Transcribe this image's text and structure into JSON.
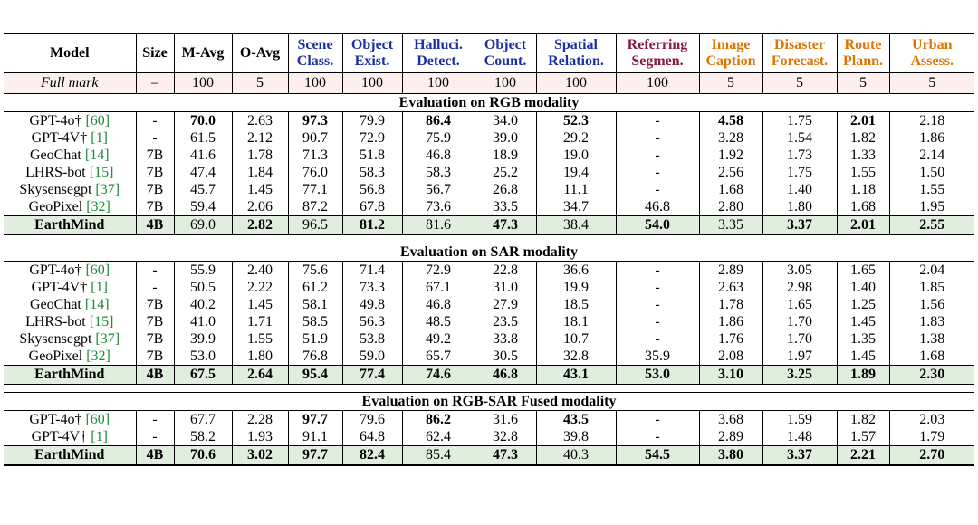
{
  "columns": [
    {
      "lines": [
        "Model"
      ],
      "color": "#000000"
    },
    {
      "lines": [
        "Size"
      ],
      "color": "#000000"
    },
    {
      "lines": [
        "M-Avg"
      ],
      "color": "#000000"
    },
    {
      "lines": [
        "O-Avg"
      ],
      "color": "#000000"
    },
    {
      "lines": [
        "Scene",
        "Class."
      ],
      "color": "#1a2fa8"
    },
    {
      "lines": [
        "Object",
        "Exist."
      ],
      "color": "#1a2fa8"
    },
    {
      "lines": [
        "Halluci.",
        "Detect."
      ],
      "color": "#1a2fa8"
    },
    {
      "lines": [
        "Object",
        "Count."
      ],
      "color": "#1a2fa8"
    },
    {
      "lines": [
        "Spatial",
        "Relation."
      ],
      "color": "#1a2fa8"
    },
    {
      "lines": [
        "Referring",
        "Segmen."
      ],
      "color": "#8b1a3a"
    },
    {
      "lines": [
        "Image",
        "Caption"
      ],
      "color": "#e07400"
    },
    {
      "lines": [
        "Disaster",
        "Forecast."
      ],
      "color": "#e07400"
    },
    {
      "lines": [
        "Route",
        "Plann."
      ],
      "color": "#e07400"
    },
    {
      "lines": [
        "Urban",
        "Assess."
      ],
      "color": "#e07400"
    }
  ],
  "full_mark": {
    "label": "Full mark",
    "size": "–",
    "values": [
      "100",
      "5",
      "100",
      "100",
      "100",
      "100",
      "100",
      "100",
      "5",
      "5",
      "5",
      "5"
    ]
  },
  "sections": [
    {
      "title": "Evaluation on RGB modality",
      "rows": [
        {
          "name": "GPT-4o†",
          "cite": "[60]",
          "size": "-",
          "values": [
            "70.0",
            "2.63",
            "97.3",
            "79.9",
            "86.4",
            "34.0",
            "52.3",
            "-",
            "4.58",
            "1.75",
            "2.01",
            "2.18"
          ],
          "bold": [
            0,
            2,
            4,
            6,
            8,
            10
          ],
          "ours": false
        },
        {
          "name": "GPT-4V†",
          "cite": "[1]",
          "size": "-",
          "values": [
            "61.5",
            "2.12",
            "90.7",
            "72.9",
            "75.9",
            "39.0",
            "29.2",
            "-",
            "3.28",
            "1.54",
            "1.82",
            "1.86"
          ],
          "bold": [],
          "ours": false
        },
        {
          "name": "GeoChat",
          "cite": "[14]",
          "size": "7B",
          "values": [
            "41.6",
            "1.78",
            "71.3",
            "51.8",
            "46.8",
            "18.9",
            "19.0",
            "-",
            "1.92",
            "1.73",
            "1.33",
            "2.14"
          ],
          "bold": [],
          "ours": false
        },
        {
          "name": "LHRS-bot",
          "cite": "[15]",
          "size": "7B",
          "values": [
            "47.4",
            "1.84",
            "76.0",
            "58.3",
            "58.3",
            "25.2",
            "19.4",
            "-",
            "2.56",
            "1.75",
            "1.55",
            "1.50"
          ],
          "bold": [],
          "ours": false
        },
        {
          "name": "Skysensegpt",
          "cite": "[37]",
          "size": "7B",
          "values": [
            "45.7",
            "1.45",
            "77.1",
            "56.8",
            "56.7",
            "26.8",
            "11.1",
            "-",
            "1.68",
            "1.40",
            "1.18",
            "1.55"
          ],
          "bold": [],
          "ours": false
        },
        {
          "name": "GeoPixel",
          "cite": "[32]",
          "size": "7B",
          "values": [
            "59.4",
            "2.06",
            "87.2",
            "67.8",
            "73.6",
            "33.5",
            "34.7",
            "46.8",
            "2.80",
            "1.80",
            "1.68",
            "1.95"
          ],
          "bold": [],
          "ours": false
        },
        {
          "name": "EarthMind",
          "cite": "",
          "size": "4B",
          "values": [
            "69.0",
            "2.82",
            "96.5",
            "81.2",
            "81.6",
            "47.3",
            "38.4",
            "54.0",
            "3.35",
            "3.37",
            "2.01",
            "2.55"
          ],
          "bold": [
            1,
            3,
            5,
            7,
            9,
            10,
            11
          ],
          "ours": true
        }
      ]
    },
    {
      "title": "Evaluation on SAR modality",
      "rows": [
        {
          "name": "GPT-4o†",
          "cite": "[60]",
          "size": "-",
          "values": [
            "55.9",
            "2.40",
            "75.6",
            "71.4",
            "72.9",
            "22.8",
            "36.6",
            "-",
            "2.89",
            "3.05",
            "1.65",
            "2.04"
          ],
          "bold": [],
          "ours": false
        },
        {
          "name": "GPT-4V†",
          "cite": "[1]",
          "size": "-",
          "values": [
            "50.5",
            "2.22",
            "61.2",
            "73.3",
            "67.1",
            "31.0",
            "19.9",
            "-",
            "2.63",
            "2.98",
            "1.40",
            "1.85"
          ],
          "bold": [],
          "ours": false
        },
        {
          "name": "GeoChat",
          "cite": "[14]",
          "size": "7B",
          "values": [
            "40.2",
            "1.45",
            "58.1",
            "49.8",
            "46.8",
            "27.9",
            "18.5",
            "-",
            "1.78",
            "1.65",
            "1.25",
            "1.56"
          ],
          "bold": [],
          "ours": false
        },
        {
          "name": "LHRS-bot",
          "cite": "[15]",
          "size": "7B",
          "values": [
            "41.0",
            "1.71",
            "58.5",
            "56.3",
            "48.5",
            "23.5",
            "18.1",
            "-",
            "1.86",
            "1.70",
            "1.45",
            "1.83"
          ],
          "bold": [],
          "ours": false
        },
        {
          "name": "Skysensegpt",
          "cite": "[37]",
          "size": "7B",
          "values": [
            "39.9",
            "1.55",
            "51.9",
            "53.8",
            "49.2",
            "33.8",
            "10.7",
            "-",
            "1.76",
            "1.70",
            "1.35",
            "1.38"
          ],
          "bold": [],
          "ours": false
        },
        {
          "name": "GeoPixel",
          "cite": "[32]",
          "size": "7B",
          "values": [
            "53.0",
            "1.80",
            "76.8",
            "59.0",
            "65.7",
            "30.5",
            "32.8",
            "35.9",
            "2.08",
            "1.97",
            "1.45",
            "1.68"
          ],
          "bold": [],
          "ours": false
        },
        {
          "name": "EarthMind",
          "cite": "",
          "size": "4B",
          "values": [
            "67.5",
            "2.64",
            "95.4",
            "77.4",
            "74.6",
            "46.8",
            "43.1",
            "53.0",
            "3.10",
            "3.25",
            "1.89",
            "2.30"
          ],
          "bold": [
            0,
            1,
            2,
            3,
            4,
            5,
            6,
            7,
            8,
            9,
            10,
            11
          ],
          "ours": true
        }
      ]
    },
    {
      "title": "Evaluation on RGB-SAR Fused modality",
      "rows": [
        {
          "name": "GPT-4o†",
          "cite": "[60]",
          "size": "-",
          "values": [
            "67.7",
            "2.28",
            "97.7",
            "79.6",
            "86.2",
            "31.6",
            "43.5",
            "-",
            "3.68",
            "1.59",
            "1.82",
            "2.03"
          ],
          "bold": [
            2,
            4,
            6
          ],
          "ours": false
        },
        {
          "name": "GPT-4V†",
          "cite": "[1]",
          "size": "-",
          "values": [
            "58.2",
            "1.93",
            "91.1",
            "64.8",
            "62.4",
            "32.8",
            "39.8",
            "-",
            "2.89",
            "1.48",
            "1.57",
            "1.79"
          ],
          "bold": [],
          "ours": false
        },
        {
          "name": "EarthMind",
          "cite": "",
          "size": "4B",
          "values": [
            "70.6",
            "3.02",
            "97.7",
            "82.4",
            "85.4",
            "47.3",
            "40.3",
            "54.5",
            "3.80",
            "3.37",
            "2.21",
            "2.70"
          ],
          "bold": [
            0,
            1,
            2,
            3,
            5,
            7,
            8,
            9,
            10,
            11
          ],
          "ours": true
        }
      ]
    }
  ]
}
